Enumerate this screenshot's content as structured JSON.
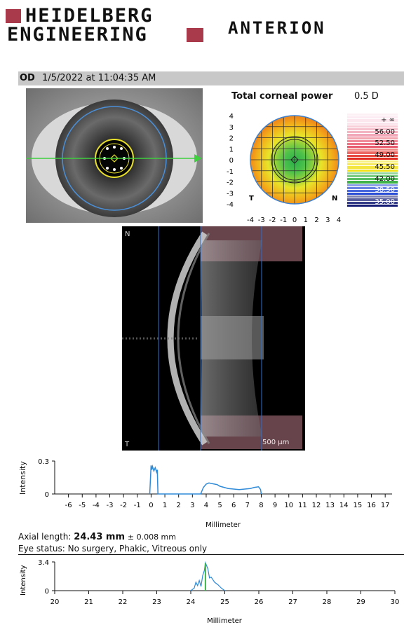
{
  "brand": {
    "line1": "HEIDELBERG",
    "line2": "ENGINEERING",
    "product": "ANTERION",
    "accent": "#a83a4b"
  },
  "header": {
    "eye": "OD",
    "datetime": "1/5/2022 at 11:04:35 AM"
  },
  "corneal_map": {
    "title": "Total corneal power",
    "step": "0.5 D",
    "y_ticks": [
      "4",
      "3",
      "2",
      "1",
      "0",
      "-1",
      "-2",
      "-3",
      "-4"
    ],
    "x_ticks": [
      "-4",
      "-3",
      "-2",
      "-1",
      "0",
      "1",
      "2",
      "3",
      "4"
    ],
    "label_t": "T",
    "label_n": "N",
    "legend": [
      {
        "label": "+ ∞",
        "color": "#fbe3ec"
      },
      {
        "label": "56.00",
        "color": "#f2a8b8"
      },
      {
        "label": "52.50",
        "color": "#e85a6e"
      },
      {
        "label": "49.00",
        "color": "#e22a1f"
      },
      {
        "label": "45.50",
        "color": "#f2e21c"
      },
      {
        "label": "42.00",
        "color": "#3fb34a"
      },
      {
        "label": "38.50",
        "color": "#2a4fd6"
      },
      {
        "label": "35.00",
        "color": "#121a73"
      }
    ]
  },
  "oct_scan": {
    "label_n": "N",
    "label_t": "T",
    "scale": "500 µm"
  },
  "plot1": {
    "ylabel": "Intensity",
    "y_ticks": [
      "0.3",
      "0"
    ],
    "x_ticks": [
      "-6",
      "-5",
      "-4",
      "-3",
      "-2",
      "-1",
      "0",
      "1",
      "2",
      "3",
      "4",
      "5",
      "6",
      "7",
      "8",
      "9",
      "10",
      "11",
      "12",
      "13",
      "14",
      "15",
      "16",
      "17"
    ],
    "xlabel": "Millimeter"
  },
  "axial": {
    "prefix": "Axial length:",
    "value": "24.43 mm",
    "tolerance": "± 0.008 mm",
    "eye_status": "Eye status: No surgery, Phakic, Vitreous only"
  },
  "plot2": {
    "ylabel": "Intensity",
    "y_ticks": [
      "3.4",
      "0"
    ],
    "x_ticks": [
      "20",
      "21",
      "22",
      "23",
      "24",
      "25",
      "26",
      "27",
      "28",
      "29",
      "30"
    ],
    "xlabel": "Millimeter"
  },
  "chart_data": [
    {
      "type": "line",
      "title": "",
      "xlabel": "Millimeter",
      "ylabel": "Intensity",
      "xlim": [
        -7,
        17.5
      ],
      "ylim": [
        0,
        0.3
      ],
      "series": [
        {
          "x": [
            -0.1,
            0,
            0.05,
            0.1,
            0.2,
            0.3,
            0.4,
            0.45,
            0.5,
            3.6,
            3.8,
            4.0,
            4.2,
            4.4,
            4.6,
            4.8,
            5.0,
            5.3,
            5.6,
            6.0,
            6.4,
            6.8,
            7.2,
            7.5,
            7.8,
            7.95,
            8.0
          ],
          "values": [
            0,
            0.26,
            0.22,
            0.25,
            0.21,
            0.24,
            0.2,
            0.22,
            0,
            0,
            0.06,
            0.09,
            0.1,
            0.095,
            0.09,
            0.085,
            0.07,
            0.06,
            0.05,
            0.045,
            0.04,
            0.045,
            0.05,
            0.06,
            0.065,
            0.04,
            0
          ]
        }
      ]
    },
    {
      "type": "line",
      "title": "",
      "xlabel": "Millimeter",
      "ylabel": "Intensity",
      "xlim": [
        20,
        30
      ],
      "ylim": [
        0,
        3.4
      ],
      "series": [
        {
          "x": [
            24.0,
            24.1,
            24.15,
            24.2,
            24.25,
            24.3,
            24.35,
            24.4,
            24.43,
            24.5,
            24.55,
            24.6,
            24.7,
            24.8,
            24.9,
            25.0
          ],
          "values": [
            0,
            0.3,
            1.0,
            0.6,
            1.2,
            0.5,
            1.8,
            2.4,
            3.3,
            2.6,
            1.5,
            1.6,
            1.0,
            0.7,
            0.3,
            0
          ]
        }
      ]
    }
  ]
}
